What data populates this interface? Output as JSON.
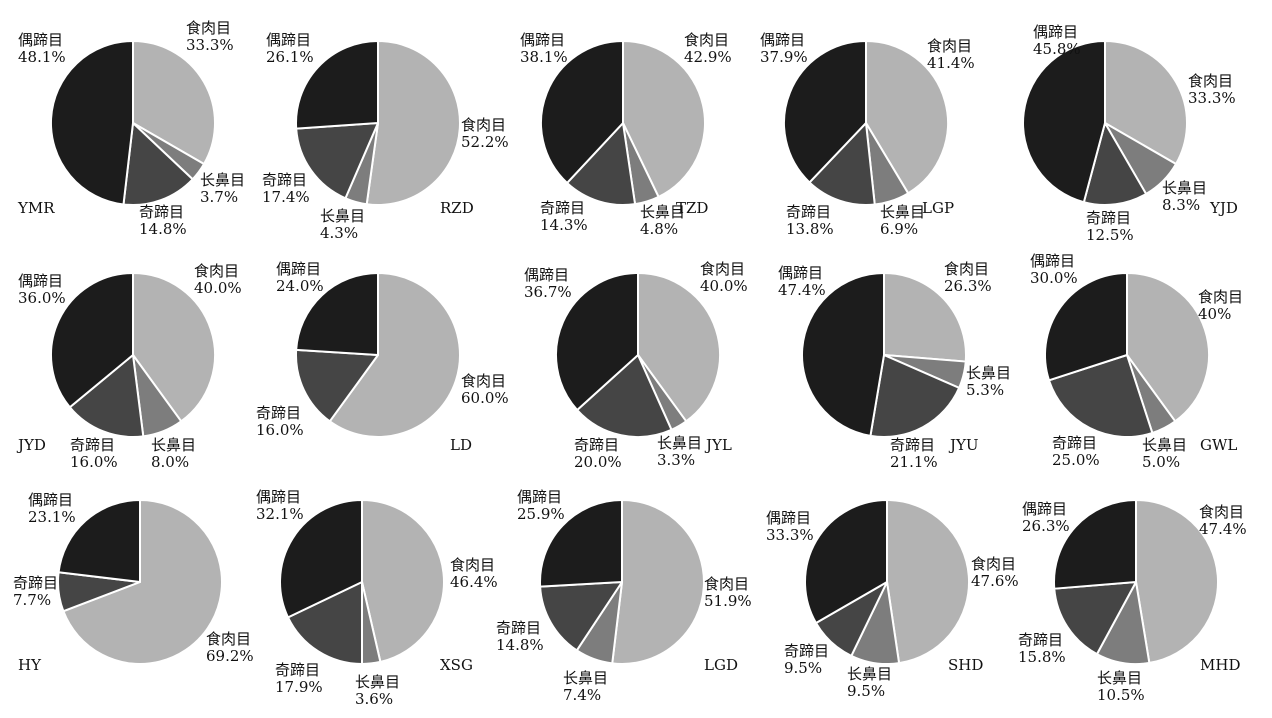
{
  "colors": {
    "食肉目": "#b3b3b3",
    "长鼻目": "#7d7d7d",
    "奇蹄目": "#454545",
    "偶蹄目": "#1c1c1c",
    "stroke": "#ffffff"
  },
  "chart_data": [
    {
      "type": "pie",
      "site": "YMR",
      "slices": [
        {
          "name": "食肉目",
          "value": 33.3,
          "label": "33.3%"
        },
        {
          "name": "长鼻目",
          "value": 3.7,
          "label": "3.7%"
        },
        {
          "name": "奇蹄目",
          "value": 14.8,
          "label": "14.8%"
        },
        {
          "name": "偶蹄目",
          "value": 48.1,
          "label": "48.1%"
        }
      ]
    },
    {
      "type": "pie",
      "site": "RZD",
      "slices": [
        {
          "name": "食肉目",
          "value": 52.2,
          "label": "52.2%"
        },
        {
          "name": "长鼻目",
          "value": 4.3,
          "label": "4.3%"
        },
        {
          "name": "奇蹄目",
          "value": 17.4,
          "label": "17.4%"
        },
        {
          "name": "偶蹄目",
          "value": 26.1,
          "label": "26.1%"
        }
      ]
    },
    {
      "type": "pie",
      "site": "TZD",
      "slices": [
        {
          "name": "食肉目",
          "value": 42.9,
          "label": "42.9%"
        },
        {
          "name": "长鼻目",
          "value": 4.8,
          "label": "4.8%"
        },
        {
          "name": "奇蹄目",
          "value": 14.3,
          "label": "14.3%"
        },
        {
          "name": "偶蹄目",
          "value": 38.1,
          "label": "38.1%"
        }
      ]
    },
    {
      "type": "pie",
      "site": "LGP",
      "slices": [
        {
          "name": "食肉目",
          "value": 41.4,
          "label": "41.4%"
        },
        {
          "name": "长鼻目",
          "value": 6.9,
          "label": "6.9%"
        },
        {
          "name": "奇蹄目",
          "value": 13.8,
          "label": "13.8%"
        },
        {
          "name": "偶蹄目",
          "value": 37.9,
          "label": "37.9%"
        }
      ]
    },
    {
      "type": "pie",
      "site": "YJD",
      "slices": [
        {
          "name": "食肉目",
          "value": 33.3,
          "label": "33.3%"
        },
        {
          "name": "长鼻目",
          "value": 8.3,
          "label": "8.3%"
        },
        {
          "name": "奇蹄目",
          "value": 12.5,
          "label": "12.5%"
        },
        {
          "name": "偶蹄目",
          "value": 45.8,
          "label": "45.8%"
        }
      ]
    },
    {
      "type": "pie",
      "site": "JYD",
      "slices": [
        {
          "name": "食肉目",
          "value": 40.0,
          "label": "40.0%"
        },
        {
          "name": "长鼻目",
          "value": 8.0,
          "label": "8.0%"
        },
        {
          "name": "奇蹄目",
          "value": 16.0,
          "label": "16.0%"
        },
        {
          "name": "偶蹄目",
          "value": 36.0,
          "label": "36.0%"
        }
      ]
    },
    {
      "type": "pie",
      "site": "LD",
      "slices": [
        {
          "name": "食肉目",
          "value": 60.0,
          "label": "60.0%"
        },
        {
          "name": "奇蹄目",
          "value": 16.0,
          "label": "16.0%"
        },
        {
          "name": "偶蹄目",
          "value": 24.0,
          "label": "24.0%"
        }
      ]
    },
    {
      "type": "pie",
      "site": "JYL",
      "slices": [
        {
          "name": "食肉目",
          "value": 40.0,
          "label": "40.0%"
        },
        {
          "name": "长鼻目",
          "value": 3.3,
          "label": "3.3%"
        },
        {
          "name": "奇蹄目",
          "value": 20.0,
          "label": "20.0%"
        },
        {
          "name": "偶蹄目",
          "value": 36.7,
          "label": "36.7%"
        }
      ]
    },
    {
      "type": "pie",
      "site": "JYU",
      "slices": [
        {
          "name": "食肉目",
          "value": 26.3,
          "label": "26.3%"
        },
        {
          "name": "长鼻目",
          "value": 5.3,
          "label": "5.3%"
        },
        {
          "name": "奇蹄目",
          "value": 21.1,
          "label": "21.1%"
        },
        {
          "name": "偶蹄目",
          "value": 47.4,
          "label": "47.4%"
        }
      ]
    },
    {
      "type": "pie",
      "site": "GWL",
      "slices": [
        {
          "name": "食肉目",
          "value": 40,
          "label": "40%"
        },
        {
          "name": "长鼻目",
          "value": 5.0,
          "label": "5.0%"
        },
        {
          "name": "奇蹄目",
          "value": 25.0,
          "label": "25.0%"
        },
        {
          "name": "偶蹄目",
          "value": 30.0,
          "label": "30.0%"
        }
      ]
    },
    {
      "type": "pie",
      "site": "HY",
      "slices": [
        {
          "name": "食肉目",
          "value": 69.2,
          "label": "69.2%"
        },
        {
          "name": "奇蹄目",
          "value": 7.7,
          "label": "7.7%"
        },
        {
          "name": "偶蹄目",
          "value": 23.1,
          "label": "23.1%"
        }
      ]
    },
    {
      "type": "pie",
      "site": "XSG",
      "slices": [
        {
          "name": "食肉目",
          "value": 46.4,
          "label": "46.4%"
        },
        {
          "name": "长鼻目",
          "value": 3.6,
          "label": "3.6%"
        },
        {
          "name": "奇蹄目",
          "value": 17.9,
          "label": "17.9%"
        },
        {
          "name": "偶蹄目",
          "value": 32.1,
          "label": "32.1%"
        }
      ]
    },
    {
      "type": "pie",
      "site": "LGD",
      "slices": [
        {
          "name": "食肉目",
          "value": 51.9,
          "label": "51.9%"
        },
        {
          "name": "长鼻目",
          "value": 7.4,
          "label": "7.4%"
        },
        {
          "name": "奇蹄目",
          "value": 14.8,
          "label": "14.8%"
        },
        {
          "name": "偶蹄目",
          "value": 25.9,
          "label": "25.9%"
        }
      ]
    },
    {
      "type": "pie",
      "site": "SHD",
      "slices": [
        {
          "name": "食肉目",
          "value": 47.6,
          "label": "47.6%"
        },
        {
          "name": "长鼻目",
          "value": 9.5,
          "label": "9.5%"
        },
        {
          "name": "奇蹄目",
          "value": 9.5,
          "label": "9.5%"
        },
        {
          "name": "偶蹄目",
          "value": 33.3,
          "label": "33.3%"
        }
      ]
    },
    {
      "type": "pie",
      "site": "MHD",
      "slices": [
        {
          "name": "食肉目",
          "value": 47.4,
          "label": "47.4%"
        },
        {
          "name": "长鼻目",
          "value": 10.5,
          "label": "10.5%"
        },
        {
          "name": "奇蹄目",
          "value": 15.8,
          "label": "15.8%"
        },
        {
          "name": "偶蹄目",
          "value": 26.3,
          "label": "26.3%"
        }
      ]
    }
  ]
}
